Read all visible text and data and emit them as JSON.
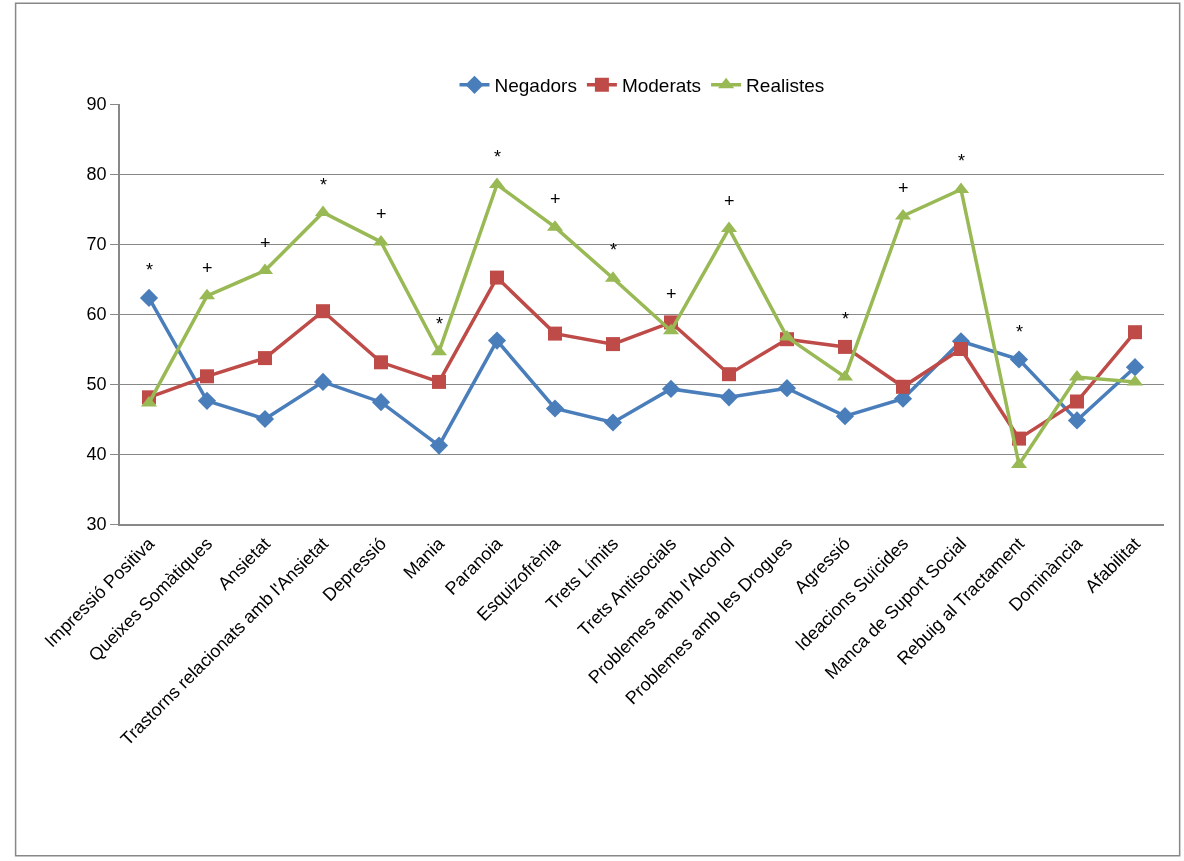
{
  "chart_data": {
    "type": "line",
    "categories": [
      "Impressió Positiva",
      "Queixes Somàtiques",
      "Ansietat",
      "Trastorns relacionats amb l'Ansietat",
      "Depressió",
      "Mania",
      "Paranoia",
      "Esquizofrènia",
      "Trets Límits",
      "Trets Antisocials",
      "Problemes amb l'Alcohol",
      "Problemes amb les Drogues",
      "Agressió",
      "Ideacions Suïcides",
      "Manca de Suport Social",
      "Rebuig al Tractament",
      "Dominància",
      "Afabilitat"
    ],
    "series": [
      {
        "name": "Negadors",
        "color": "#4a7ebb",
        "marker": "diamond",
        "values": [
          62.3,
          47.6,
          45.0,
          50.3,
          47.4,
          41.2,
          56.2,
          46.5,
          44.5,
          49.3,
          48.1,
          49.4,
          45.4,
          47.9,
          56.1,
          53.5,
          44.8,
          52.4
        ]
      },
      {
        "name": "Moderats",
        "color": "#be4b48",
        "marker": "square",
        "values": [
          48.1,
          51.1,
          53.7,
          60.4,
          53.1,
          50.3,
          65.2,
          57.2,
          55.7,
          58.8,
          51.4,
          56.4,
          55.3,
          49.6,
          55.0,
          42.2,
          47.5,
          57.4
        ]
      },
      {
        "name": "Realistes",
        "color": "#98b954",
        "marker": "triangle",
        "values": [
          47.3,
          62.6,
          66.2,
          74.5,
          70.3,
          54.6,
          78.5,
          72.4,
          65.1,
          57.6,
          72.2,
          56.7,
          51.0,
          74.0,
          77.8,
          38.5,
          51.0,
          50.3
        ]
      }
    ],
    "ylim": [
      30,
      90
    ],
    "yticks": [
      30,
      40,
      50,
      60,
      70,
      80,
      90
    ],
    "grid": "y",
    "legend": "top",
    "line_style": "solid",
    "annotations": [
      "*",
      "+",
      "+",
      "*",
      "+",
      "*",
      "*",
      "+",
      "*",
      "+",
      "+",
      "*",
      "+",
      "*",
      "*"
    ]
  }
}
